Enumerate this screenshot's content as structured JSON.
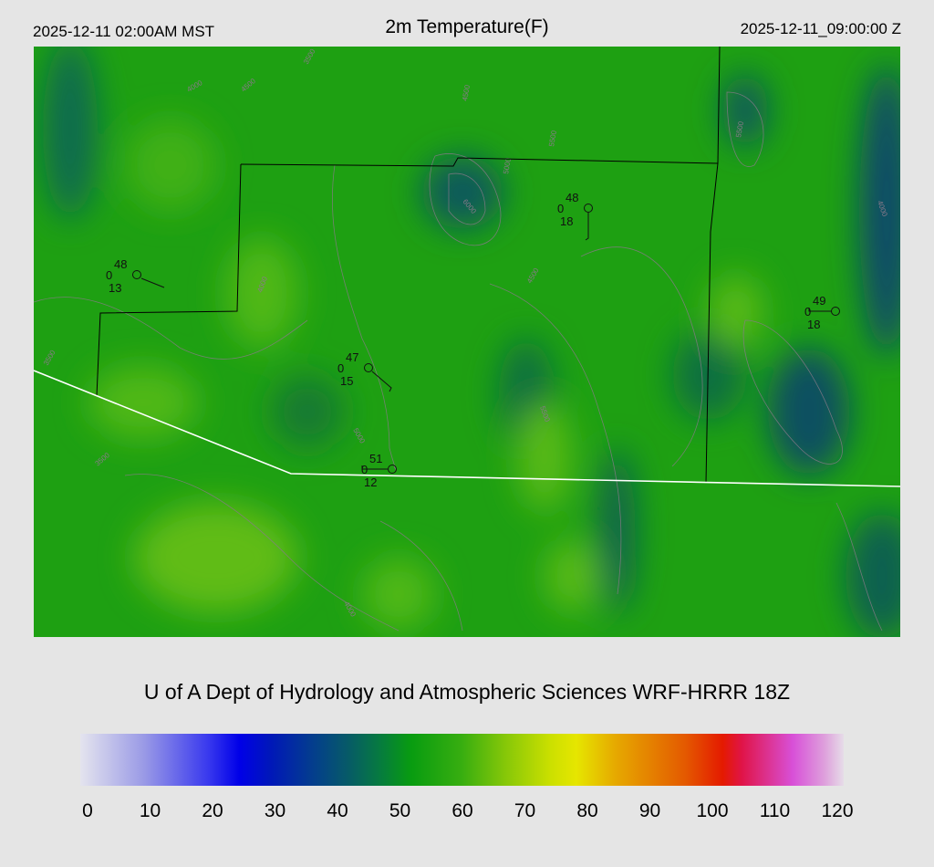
{
  "header": {
    "local_time": "2025-12-11 02:00AM MST",
    "title": "2m Temperature(F)",
    "utc_time": "2025-12-11_09:00:00 Z"
  },
  "credit": "U of A Dept of Hydrology and Atmospheric Sciences WRF-HRRR 18Z",
  "colorbar": {
    "ticks": [
      "0",
      "10",
      "20",
      "30",
      "40",
      "50",
      "60",
      "70",
      "80",
      "90",
      "100",
      "110",
      "120"
    ],
    "range": [
      0,
      120
    ],
    "stops": [
      {
        "v": 0,
        "c": "#e4e4ee"
      },
      {
        "v": 10,
        "c": "#9a9ae6"
      },
      {
        "v": 20,
        "c": "#3a3aee"
      },
      {
        "v": 25,
        "c": "#0000e8"
      },
      {
        "v": 30,
        "c": "#0018b8"
      },
      {
        "v": 37,
        "c": "#04408a"
      },
      {
        "v": 42,
        "c": "#065a68"
      },
      {
        "v": 47,
        "c": "#067a40"
      },
      {
        "v": 52,
        "c": "#089c10"
      },
      {
        "v": 60,
        "c": "#38ae10"
      },
      {
        "v": 67,
        "c": "#88c808"
      },
      {
        "v": 74,
        "c": "#cce000"
      },
      {
        "v": 78,
        "c": "#e6e600"
      },
      {
        "v": 84,
        "c": "#e6aa00"
      },
      {
        "v": 95,
        "c": "#e45a00"
      },
      {
        "v": 101,
        "c": "#e41a00"
      },
      {
        "v": 104,
        "c": "#e01448"
      },
      {
        "v": 112,
        "c": "#d850d8"
      },
      {
        "v": 117,
        "c": "#dea0dc"
      },
      {
        "v": 120,
        "c": "#e6dce8"
      }
    ]
  },
  "stations": [
    {
      "temp": "48",
      "precip": "0",
      "dew": "13"
    },
    {
      "temp": "47",
      "precip": "0",
      "dew": "15"
    },
    {
      "temp": "51",
      "precip": "0",
      "dew": "12"
    },
    {
      "temp": "48",
      "precip": "0",
      "dew": "18"
    },
    {
      "temp": "49",
      "precip": "0",
      "dew": "18"
    }
  ],
  "contour_labels": [
    "3500",
    "4000",
    "4500",
    "4500",
    "5000",
    "5500",
    "5500",
    "6000",
    "4000",
    "3500",
    "4000",
    "5000",
    "5500",
    "4500",
    "3500",
    "4000"
  ],
  "colors": {
    "field_base": "#1ea012",
    "field_cool": "#0a6650",
    "field_warm": "#5cbc12",
    "border_black": "#000000",
    "border_white": "#ffffff",
    "contour": "#8a7a8a"
  }
}
